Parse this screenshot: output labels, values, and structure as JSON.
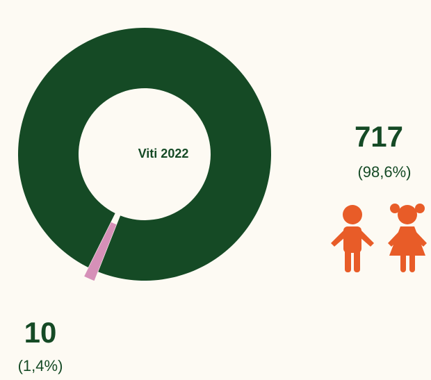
{
  "chart_data": {
    "type": "donut",
    "center_label": "Viti 2022",
    "categories": [
      "Vajza",
      "Djem"
    ],
    "values": [
      10,
      717
    ],
    "percentages": [
      1.4,
      98.6
    ],
    "percentage_labels": [
      "(1,4%)",
      "(98,6%)"
    ],
    "colors": [
      "#d690b8",
      "#154a25"
    ]
  }
}
